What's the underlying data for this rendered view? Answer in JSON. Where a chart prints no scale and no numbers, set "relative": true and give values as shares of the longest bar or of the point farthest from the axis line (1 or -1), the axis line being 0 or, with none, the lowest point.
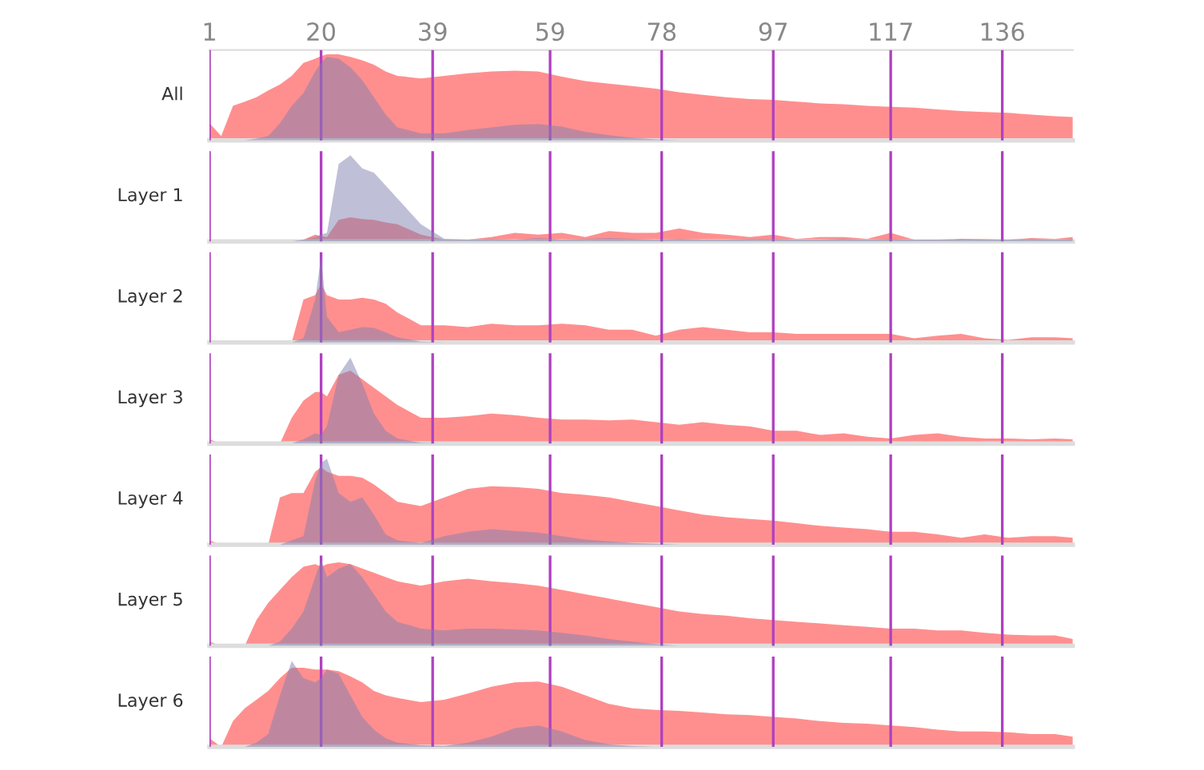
{
  "chart_data": [
    {
      "type": "area",
      "relative": true,
      "ylabel": "All",
      "tick_labels": "x",
      "grid": "x",
      "xlim": [
        1,
        148
      ],
      "xticks": [
        1,
        20,
        39,
        59,
        78,
        97,
        117,
        136
      ],
      "x": [
        1,
        3,
        5,
        7,
        9,
        11,
        13,
        15,
        17,
        19,
        20,
        21,
        23,
        25,
        27,
        29,
        31,
        33,
        37,
        41,
        45,
        49,
        53,
        57,
        61,
        65,
        69,
        73,
        77,
        81,
        85,
        89,
        93,
        97,
        101,
        105,
        109,
        113,
        117,
        121,
        125,
        129,
        133,
        137,
        141,
        145,
        148
      ],
      "series": [
        {
          "color": "#ff8f8f",
          "values": [
            0.2,
            0.05,
            0.4,
            0.45,
            0.5,
            0.58,
            0.65,
            0.75,
            0.9,
            0.95,
            0.98,
            1.0,
            1.0,
            0.97,
            0.93,
            0.88,
            0.8,
            0.75,
            0.72,
            0.75,
            0.78,
            0.8,
            0.81,
            0.8,
            0.74,
            0.69,
            0.66,
            0.63,
            0.6,
            0.56,
            0.53,
            0.5,
            0.48,
            0.47,
            0.45,
            0.43,
            0.42,
            0.4,
            0.39,
            0.38,
            0.36,
            0.34,
            0.33,
            0.32,
            0.3,
            0.28,
            0.27
          ]
        },
        {
          "color": "#8080b0",
          "values": [
            0,
            0,
            0,
            0,
            0.02,
            0.05,
            0.2,
            0.4,
            0.55,
            0.8,
            0.9,
            0.97,
            0.95,
            0.85,
            0.7,
            0.5,
            0.3,
            0.15,
            0.08,
            0.08,
            0.12,
            0.15,
            0.18,
            0.19,
            0.16,
            0.1,
            0.06,
            0.03,
            0.01,
            0,
            0,
            0,
            0,
            0,
            0,
            0,
            0,
            0,
            0,
            0,
            0,
            0,
            0,
            0,
            0,
            0,
            0
          ]
        }
      ]
    },
    {
      "type": "area",
      "relative": true,
      "ylabel": "Layer 1",
      "tick_labels": false,
      "grid": "x",
      "xlim": [
        1,
        148
      ],
      "xticks": [
        1,
        20,
        39,
        59,
        78,
        97,
        117,
        136
      ],
      "x": [
        1,
        3,
        5,
        7,
        9,
        11,
        13,
        15,
        17,
        19,
        20,
        21,
        23,
        25,
        27,
        29,
        31,
        33,
        37,
        41,
        45,
        49,
        53,
        57,
        61,
        65,
        69,
        73,
        77,
        81,
        85,
        89,
        93,
        97,
        101,
        105,
        109,
        113,
        117,
        121,
        125,
        129,
        133,
        137,
        141,
        145,
        148
      ],
      "series": [
        {
          "color": "#ff8f8f",
          "values": [
            0,
            0,
            0,
            0,
            0,
            0,
            0,
            0,
            0.02,
            0.08,
            0.06,
            0.05,
            0.25,
            0.28,
            0.26,
            0.25,
            0.22,
            0.2,
            0.08,
            0.02,
            0.02,
            0.05,
            0.1,
            0.08,
            0.1,
            0.05,
            0.12,
            0.1,
            0.1,
            0.15,
            0.1,
            0.08,
            0.05,
            0.08,
            0.03,
            0.05,
            0.05,
            0.03,
            0.1,
            0.02,
            0,
            0.03,
            0.03,
            0.02,
            0.04,
            0.03,
            0.05
          ]
        },
        {
          "color": "#8080b0",
          "values": [
            0,
            0,
            0,
            0,
            0,
            0,
            0,
            0,
            0.02,
            0.05,
            0.08,
            0.1,
            0.9,
            1.0,
            0.85,
            0.8,
            0.65,
            0.5,
            0.2,
            0.03,
            0.02,
            0.03,
            0.02,
            0.04,
            0.02,
            0.03,
            0.04,
            0.03,
            0.02,
            0.03,
            0.02,
            0.02,
            0.03,
            0.03,
            0.02,
            0.02,
            0.03,
            0.02,
            0.03,
            0.02,
            0.02,
            0.03,
            0.02,
            0.02,
            0.03,
            0.02,
            0.03
          ]
        }
      ]
    },
    {
      "type": "area",
      "relative": true,
      "ylabel": "Layer 2",
      "tick_labels": false,
      "grid": "x",
      "xlim": [
        1,
        148
      ],
      "xticks": [
        1,
        20,
        39,
        59,
        78,
        97,
        117,
        136
      ],
      "x": [
        1,
        3,
        5,
        7,
        9,
        11,
        13,
        15,
        17,
        19,
        20,
        21,
        23,
        25,
        27,
        29,
        31,
        33,
        37,
        41,
        45,
        49,
        53,
        57,
        61,
        65,
        69,
        73,
        77,
        81,
        85,
        89,
        93,
        97,
        101,
        105,
        109,
        113,
        117,
        121,
        125,
        129,
        133,
        137,
        141,
        145,
        148
      ],
      "series": [
        {
          "color": "#ff8f8f",
          "values": [
            0,
            0,
            0,
            0,
            0,
            0,
            0,
            0,
            0.5,
            0.55,
            0.68,
            0.55,
            0.5,
            0.5,
            0.52,
            0.5,
            0.45,
            0.35,
            0.2,
            0.2,
            0.18,
            0.22,
            0.2,
            0.2,
            0.22,
            0.2,
            0.15,
            0.15,
            0.08,
            0.15,
            0.18,
            0.15,
            0.12,
            0.12,
            0.1,
            0.1,
            0.1,
            0.1,
            0.1,
            0.05,
            0.08,
            0.1,
            0.05,
            0.03,
            0.06,
            0.06,
            0.05
          ]
        },
        {
          "color": "#8080b0",
          "values": [
            0,
            0,
            0,
            0,
            0,
            0,
            0,
            0,
            0.05,
            0.5,
            1.0,
            0.3,
            0.12,
            0.15,
            0.18,
            0.17,
            0.12,
            0.06,
            0.01,
            0,
            0,
            0,
            0,
            0,
            0,
            0,
            0,
            0,
            0,
            0,
            0,
            0,
            0,
            0,
            0,
            0,
            0,
            0,
            0,
            0,
            0,
            0,
            0,
            0,
            0,
            0,
            0
          ]
        }
      ]
    },
    {
      "type": "area",
      "relative": true,
      "ylabel": "Layer 3",
      "tick_labels": false,
      "grid": "x",
      "xlim": [
        1,
        148
      ],
      "xticks": [
        1,
        20,
        39,
        59,
        78,
        97,
        117,
        136
      ],
      "x": [
        1,
        3,
        5,
        7,
        9,
        11,
        13,
        15,
        17,
        19,
        20,
        21,
        23,
        25,
        27,
        29,
        31,
        33,
        37,
        41,
        45,
        49,
        53,
        57,
        61,
        65,
        69,
        73,
        77,
        81,
        85,
        89,
        93,
        97,
        101,
        105,
        109,
        113,
        117,
        121,
        125,
        129,
        133,
        137,
        141,
        145,
        148
      ],
      "series": [
        {
          "color": "#ff8f8f",
          "values": [
            0.05,
            0,
            0,
            0,
            0,
            0,
            0,
            0.3,
            0.5,
            0.6,
            0.6,
            0.55,
            0.8,
            0.85,
            0.75,
            0.65,
            0.55,
            0.45,
            0.3,
            0.3,
            0.32,
            0.35,
            0.33,
            0.3,
            0.28,
            0.28,
            0.27,
            0.28,
            0.25,
            0.22,
            0.25,
            0.22,
            0.2,
            0.15,
            0.15,
            0.1,
            0.12,
            0.08,
            0.06,
            0.1,
            0.12,
            0.08,
            0.06,
            0.06,
            0.05,
            0.06,
            0.05
          ]
        },
        {
          "color": "#8080b0",
          "values": [
            0,
            0,
            0,
            0,
            0,
            0,
            0,
            0,
            0.05,
            0.12,
            0.1,
            0.2,
            0.8,
            1.0,
            0.7,
            0.35,
            0.15,
            0.06,
            0.01,
            0,
            0,
            0,
            0,
            0,
            0,
            0,
            0,
            0,
            0,
            0,
            0,
            0,
            0,
            0,
            0,
            0,
            0,
            0,
            0,
            0,
            0,
            0,
            0,
            0,
            0,
            0,
            0
          ]
        }
      ]
    },
    {
      "type": "area",
      "relative": true,
      "ylabel": "Layer 4",
      "tick_labels": false,
      "grid": "x",
      "xlim": [
        1,
        148
      ],
      "xticks": [
        1,
        20,
        39,
        59,
        78,
        97,
        117,
        136
      ],
      "x": [
        1,
        3,
        5,
        7,
        9,
        11,
        13,
        15,
        17,
        19,
        20,
        21,
        23,
        25,
        27,
        29,
        31,
        33,
        37,
        41,
        45,
        49,
        53,
        57,
        61,
        65,
        69,
        73,
        77,
        81,
        85,
        89,
        93,
        97,
        101,
        105,
        109,
        113,
        117,
        121,
        125,
        129,
        133,
        137,
        141,
        145,
        148
      ],
      "series": [
        {
          "color": "#ff8f8f",
          "values": [
            0.05,
            0,
            0,
            0,
            0,
            0,
            0.55,
            0.6,
            0.6,
            0.85,
            0.9,
            0.85,
            0.8,
            0.8,
            0.78,
            0.7,
            0.6,
            0.5,
            0.45,
            0.55,
            0.65,
            0.68,
            0.67,
            0.65,
            0.6,
            0.58,
            0.55,
            0.5,
            0.45,
            0.4,
            0.35,
            0.32,
            0.3,
            0.28,
            0.25,
            0.22,
            0.2,
            0.18,
            0.15,
            0.15,
            0.12,
            0.08,
            0.12,
            0.08,
            0.1,
            0.1,
            0.08
          ]
        },
        {
          "color": "#8080b0",
          "values": [
            0,
            0,
            0,
            0,
            0,
            0,
            0,
            0.05,
            0.1,
            0.75,
            0.95,
            1.0,
            0.6,
            0.5,
            0.55,
            0.35,
            0.12,
            0.05,
            0.02,
            0.1,
            0.15,
            0.18,
            0.16,
            0.14,
            0.1,
            0.06,
            0.04,
            0.02,
            0.01,
            0,
            0,
            0,
            0,
            0,
            0,
            0,
            0,
            0,
            0,
            0,
            0,
            0,
            0,
            0,
            0,
            0,
            0
          ]
        }
      ]
    },
    {
      "type": "area",
      "relative": true,
      "ylabel": "Layer 5",
      "tick_labels": false,
      "grid": "x",
      "xlim": [
        1,
        148
      ],
      "xticks": [
        1,
        20,
        39,
        59,
        78,
        97,
        117,
        136
      ],
      "x": [
        1,
        3,
        5,
        7,
        9,
        11,
        13,
        15,
        17,
        19,
        20,
        21,
        23,
        25,
        27,
        29,
        31,
        33,
        37,
        41,
        45,
        49,
        53,
        57,
        61,
        65,
        69,
        73,
        77,
        81,
        85,
        89,
        93,
        97,
        101,
        105,
        109,
        113,
        117,
        121,
        125,
        129,
        133,
        137,
        141,
        145,
        148
      ],
      "series": [
        {
          "color": "#ff8f8f",
          "values": [
            0.05,
            0,
            0,
            0,
            0.3,
            0.5,
            0.65,
            0.8,
            0.92,
            0.95,
            0.92,
            0.95,
            0.97,
            0.95,
            0.9,
            0.85,
            0.8,
            0.75,
            0.7,
            0.75,
            0.78,
            0.75,
            0.73,
            0.7,
            0.65,
            0.6,
            0.55,
            0.5,
            0.45,
            0.4,
            0.37,
            0.35,
            0.32,
            0.3,
            0.28,
            0.26,
            0.24,
            0.22,
            0.2,
            0.2,
            0.18,
            0.18,
            0.15,
            0.13,
            0.12,
            0.12,
            0.08
          ]
        },
        {
          "color": "#8080b0",
          "values": [
            0,
            0,
            0,
            0,
            0,
            0,
            0.05,
            0.2,
            0.4,
            0.8,
            1.0,
            0.8,
            0.9,
            0.95,
            0.8,
            0.6,
            0.4,
            0.28,
            0.2,
            0.18,
            0.2,
            0.2,
            0.19,
            0.18,
            0.15,
            0.12,
            0.08,
            0.05,
            0.02,
            0,
            0,
            0,
            0,
            0,
            0,
            0,
            0,
            0,
            0,
            0,
            0,
            0,
            0,
            0,
            0,
            0,
            0
          ]
        }
      ]
    },
    {
      "type": "area",
      "relative": true,
      "ylabel": "Layer 6",
      "tick_labels": false,
      "grid": "x",
      "xlim": [
        1,
        148
      ],
      "xticks": [
        1,
        20,
        39,
        59,
        78,
        97,
        117,
        136
      ],
      "x": [
        1,
        3,
        5,
        7,
        9,
        11,
        13,
        15,
        17,
        19,
        20,
        21,
        23,
        25,
        27,
        29,
        31,
        33,
        37,
        41,
        45,
        49,
        53,
        57,
        61,
        65,
        69,
        73,
        77,
        81,
        85,
        89,
        93,
        97,
        101,
        105,
        109,
        113,
        117,
        121,
        125,
        129,
        133,
        137,
        141,
        145,
        148
      ],
      "series": [
        {
          "color": "#ff8f8f",
          "values": [
            0.1,
            0,
            0.3,
            0.45,
            0.55,
            0.65,
            0.8,
            0.92,
            0.92,
            0.9,
            0.9,
            0.9,
            0.88,
            0.82,
            0.75,
            0.65,
            0.6,
            0.57,
            0.52,
            0.55,
            0.62,
            0.7,
            0.75,
            0.76,
            0.7,
            0.6,
            0.5,
            0.45,
            0.43,
            0.42,
            0.4,
            0.38,
            0.37,
            0.35,
            0.33,
            0.3,
            0.28,
            0.27,
            0.25,
            0.23,
            0.2,
            0.18,
            0.18,
            0.17,
            0.15,
            0.15,
            0.12
          ]
        },
        {
          "color": "#8080b0",
          "values": [
            0,
            0,
            0,
            0,
            0.05,
            0.15,
            0.6,
            1.0,
            0.8,
            0.75,
            0.8,
            0.9,
            0.85,
            0.6,
            0.35,
            0.2,
            0.1,
            0.05,
            0.02,
            0.01,
            0.05,
            0.12,
            0.22,
            0.25,
            0.18,
            0.08,
            0.03,
            0.01,
            0,
            0,
            0,
            0,
            0,
            0,
            0,
            0,
            0,
            0,
            0,
            0,
            0,
            0,
            0,
            0,
            0,
            0,
            0
          ]
        }
      ]
    }
  ]
}
